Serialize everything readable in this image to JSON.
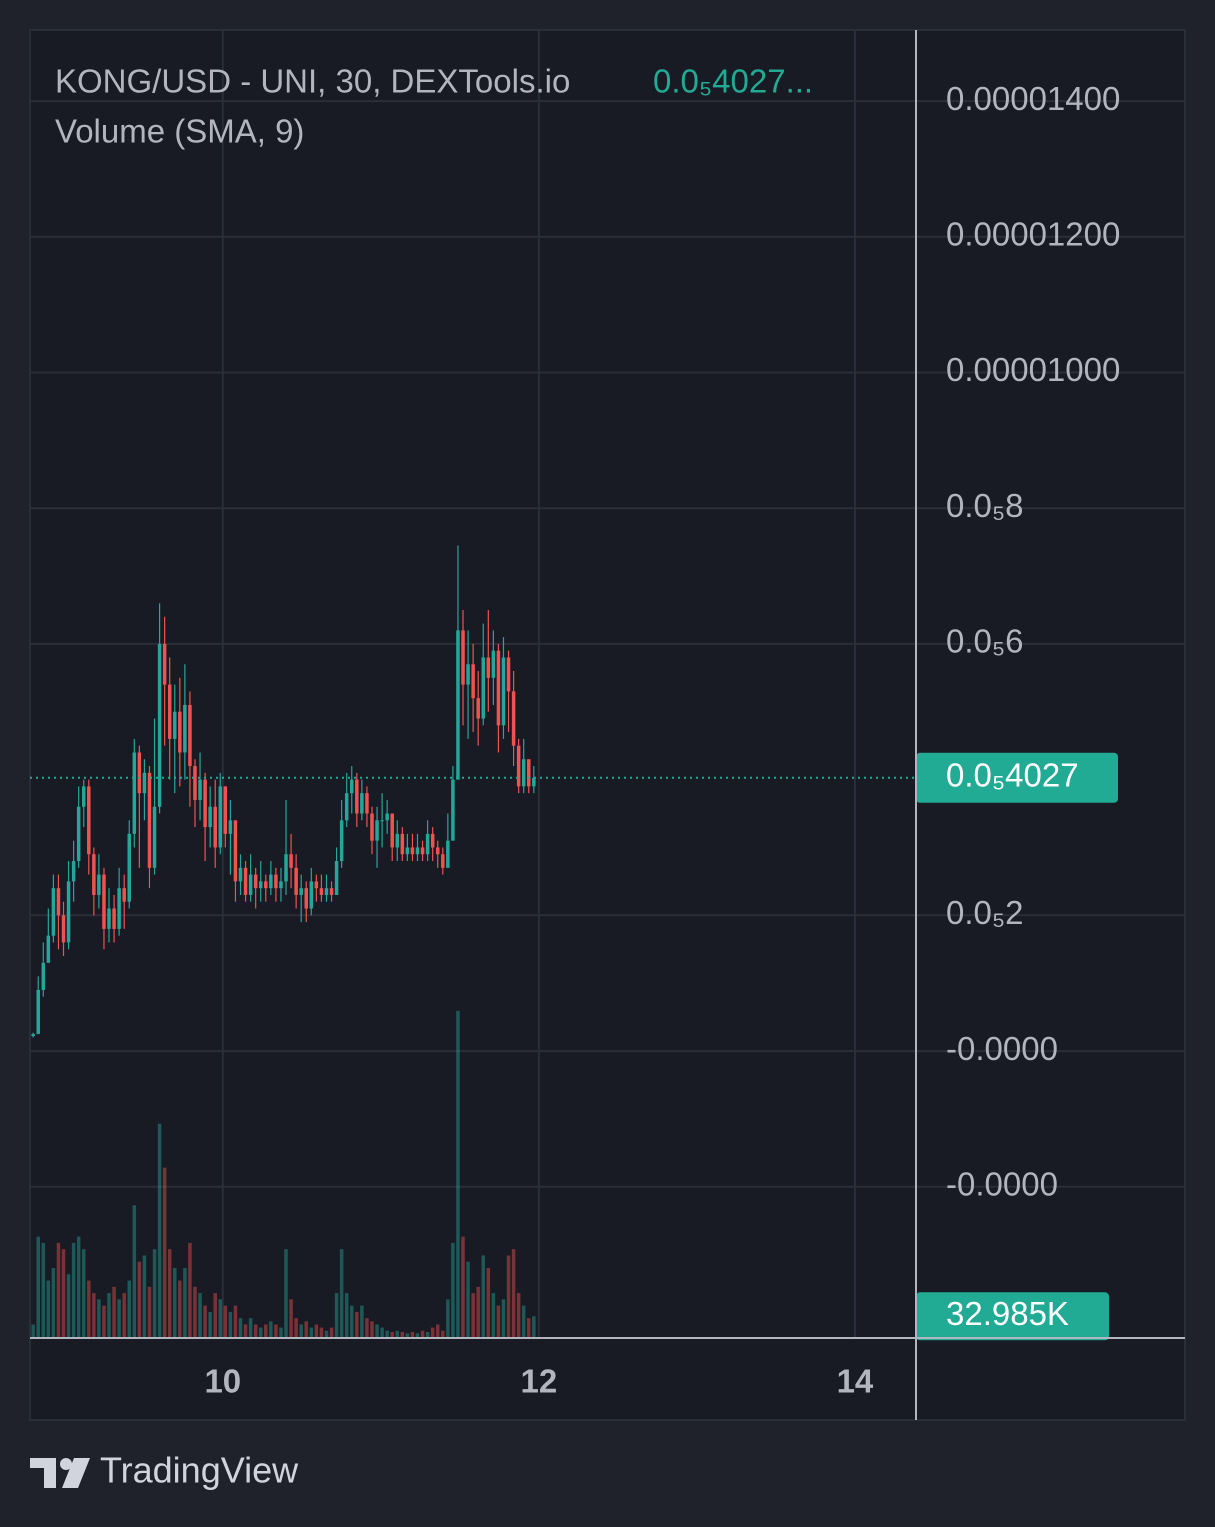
{
  "chart_data": {
    "type": "candlestick",
    "title": "KONG/USD - UNI, 30, DEXTools.io",
    "title_value": "0.0₅4027...",
    "subtitle": "Volume (SMA, 9)",
    "x": [
      8.8,
      8.832,
      8.864,
      8.896,
      8.928,
      8.96,
      8.992,
      9.024,
      9.056,
      9.088,
      9.12,
      9.152,
      9.184,
      9.216,
      9.248,
      9.28,
      9.312,
      9.344,
      9.376,
      9.408,
      9.44,
      9.472,
      9.504,
      9.536,
      9.568,
      9.6,
      9.632,
      9.664,
      9.696,
      9.728,
      9.76,
      9.792,
      9.824,
      9.856,
      9.888,
      9.92,
      9.952,
      9.984,
      10.016,
      10.048,
      10.08,
      10.112,
      10.144,
      10.176,
      10.208,
      10.24,
      10.272,
      10.304,
      10.336,
      10.368,
      10.4,
      10.432,
      10.464,
      10.496,
      10.528,
      10.56,
      10.592,
      10.624,
      10.656,
      10.688,
      10.72,
      10.752,
      10.784,
      10.816,
      10.848,
      10.88,
      10.912,
      10.944,
      10.976,
      11.008,
      11.04,
      11.072,
      11.104,
      11.136,
      11.168,
      11.2,
      11.232,
      11.264,
      11.296,
      11.328,
      11.36,
      11.392,
      11.424,
      11.456,
      11.488,
      11.52,
      11.552,
      11.584,
      11.616,
      11.648,
      11.68,
      11.712,
      11.744,
      11.776,
      11.808,
      11.84,
      11.872,
      11.904,
      11.936,
      11.968
    ],
    "open": [
      2.2e-07,
      2.5e-07,
      9e-07,
      1.3e-06,
      1.7e-06,
      2.4e-06,
      2e-06,
      1.6e-06,
      2.5e-06,
      2.8e-06,
      3.6e-06,
      3.9e-06,
      2.9e-06,
      2.3e-06,
      2.6e-06,
      1.8e-06,
      2.1e-06,
      1.8e-06,
      2.4e-06,
      2.2e-06,
      3.2e-06,
      4.4e-06,
      3.8e-06,
      4.1e-06,
      2.7e-06,
      3.6e-06,
      6e-06,
      5.4e-06,
      4.6e-06,
      5e-06,
      4.4e-06,
      5.1e-06,
      4.2e-06,
      3.7e-06,
      4e-06,
      3.3e-06,
      3.6e-06,
      3e-06,
      3.9e-06,
      3.2e-06,
      3.4e-06,
      2.5e-06,
      2.7e-06,
      2.3e-06,
      2.6e-06,
      2.4e-06,
      2.5e-06,
      2.4e-06,
      2.6e-06,
      2.4e-06,
      2.5e-06,
      2.9e-06,
      2.7e-06,
      2.3e-06,
      2.4e-06,
      2.1e-06,
      2.5e-06,
      2.4e-06,
      2.3e-06,
      2.4e-06,
      2.3e-06,
      2.8e-06,
      3.4e-06,
      3.8e-06,
      4e-06,
      3.5e-06,
      3.8e-06,
      3.5e-06,
      3.1e-06,
      3.4e-06,
      3.4e-06,
      3.5e-06,
      3e-06,
      3.2e-06,
      2.9e-06,
      3e-06,
      2.9e-06,
      3e-06,
      2.9e-06,
      3.2e-06,
      3e-06,
      2.9e-06,
      2.7e-06,
      3.1e-06,
      4e-06,
      6.2e-06,
      5.4e-06,
      5.7e-06,
      5.2e-06,
      4.9e-06,
      5.8e-06,
      5.5e-06,
      5.9e-06,
      4.8e-06,
      5.8e-06,
      5.3e-06,
      4.5e-06,
      3.9e-06,
      4.3e-06,
      3.9e-06
    ],
    "high": [
      2.7e-07,
      1.1e-06,
      1.6e-06,
      2.1e-06,
      2.6e-06,
      2.6e-06,
      2.2e-06,
      2.8e-06,
      3.1e-06,
      3.9e-06,
      4e-06,
      4e-06,
      3e-06,
      2.9e-06,
      2.7e-06,
      2.4e-06,
      2.3e-06,
      2.7e-06,
      2.6e-06,
      3.4e-06,
      4.6e-06,
      4.5e-06,
      4.3e-06,
      4.2e-06,
      4.9e-06,
      6.6e-06,
      6.4e-06,
      5.8e-06,
      5.4e-06,
      5.5e-06,
      5.7e-06,
      5.3e-06,
      4.3e-06,
      4.4e-06,
      4.1e-06,
      3.9e-06,
      4e-06,
      4.1e-06,
      3.9e-06,
      3.7e-06,
      3.4e-06,
      2.9e-06,
      2.8e-06,
      2.9e-06,
      2.7e-06,
      2.8e-06,
      2.6e-06,
      2.8e-06,
      2.7e-06,
      2.7e-06,
      3.7e-06,
      3.2e-06,
      2.9e-06,
      2.6e-06,
      2.5e-06,
      2.7e-06,
      2.6e-06,
      2.6e-06,
      2.6e-06,
      2.5e-06,
      3e-06,
      3.7e-06,
      4.1e-06,
      4.2e-06,
      4.1e-06,
      4e-06,
      3.9e-06,
      3.6e-06,
      3.6e-06,
      3.8e-06,
      3.7e-06,
      3.5e-06,
      3.4e-06,
      3.3e-06,
      3.2e-06,
      3.2e-06,
      3.2e-06,
      3.1e-06,
      3.4e-06,
      3.3e-06,
      3.1e-06,
      3e-06,
      3.5e-06,
      4.2e-06,
      7.45e-06,
      6.5e-06,
      6.2e-06,
      6e-06,
      5.6e-06,
      6.3e-06,
      6.5e-06,
      6.2e-06,
      6e-06,
      6.1e-06,
      5.9e-06,
      5.6e-06,
      4.6e-06,
      4.6e-06,
      4.3e-06,
      4.2e-06
    ],
    "low": [
      2e-07,
      2.5e-07,
      8e-07,
      1.3e-06,
      1.6e-06,
      1.5e-06,
      1.4e-06,
      1.5e-06,
      2.2e-06,
      2.7e-06,
      3.3e-06,
      2.6e-06,
      2e-06,
      2.1e-06,
      1.5e-06,
      1.6e-06,
      1.6e-06,
      1.7e-06,
      1.8e-06,
      2.1e-06,
      3e-06,
      2.7e-06,
      3.4e-06,
      2.4e-06,
      2.6e-06,
      3.5e-06,
      4.5e-06,
      4e-06,
      3.8e-06,
      3.9e-06,
      4e-06,
      3.6e-06,
      3.3e-06,
      3.4e-06,
      2.8e-06,
      3e-06,
      2.7e-06,
      2.9e-06,
      3e-06,
      2.6e-06,
      2.2e-06,
      2.3e-06,
      2.2e-06,
      2.2e-06,
      2.1e-06,
      2.2e-06,
      2.2e-06,
      2.3e-06,
      2.2e-06,
      2.2e-06,
      2.3e-06,
      2.4e-06,
      2.1e-06,
      1.9e-06,
      1.9e-06,
      2e-06,
      2.2e-06,
      2.2e-06,
      2.2e-06,
      2.2e-06,
      2.3e-06,
      2.7e-06,
      3.3e-06,
      3.5e-06,
      3.3e-06,
      3.4e-06,
      3.3e-06,
      2.9e-06,
      2.7e-06,
      3e-06,
      3.2e-06,
      2.8e-06,
      2.8e-06,
      2.8e-06,
      2.8e-06,
      2.8e-06,
      2.8e-06,
      2.8e-06,
      2.8e-06,
      2.8e-06,
      2.7e-06,
      2.6e-06,
      2.7e-06,
      3.1e-06,
      4e-06,
      4.8e-06,
      4.6e-06,
      4.7e-06,
      4.5e-06,
      4.8e-06,
      5e-06,
      5.1e-06,
      4.4e-06,
      4.6e-06,
      4.7e-06,
      4.2e-06,
      3.8e-06,
      3.8e-06,
      3.8e-06,
      3.8e-06
    ],
    "close": [
      2.5e-07,
      9e-07,
      1.3e-06,
      1.7e-06,
      2.4e-06,
      2e-06,
      1.6e-06,
      2.5e-06,
      2.8e-06,
      3.6e-06,
      3.9e-06,
      2.9e-06,
      2.3e-06,
      2.6e-06,
      1.8e-06,
      2.1e-06,
      1.8e-06,
      2.4e-06,
      2.2e-06,
      3.2e-06,
      4.4e-06,
      3.8e-06,
      4.1e-06,
      2.7e-06,
      3.6e-06,
      6e-06,
      5.4e-06,
      4.6e-06,
      5e-06,
      4.4e-06,
      5.1e-06,
      4.2e-06,
      3.7e-06,
      4e-06,
      3.3e-06,
      3.6e-06,
      3e-06,
      3.9e-06,
      3.2e-06,
      3.4e-06,
      2.5e-06,
      2.7e-06,
      2.3e-06,
      2.6e-06,
      2.4e-06,
      2.5e-06,
      2.4e-06,
      2.6e-06,
      2.4e-06,
      2.5e-06,
      2.9e-06,
      2.7e-06,
      2.3e-06,
      2.4e-06,
      2.1e-06,
      2.5e-06,
      2.4e-06,
      2.3e-06,
      2.4e-06,
      2.3e-06,
      2.8e-06,
      3.4e-06,
      3.8e-06,
      4e-06,
      3.5e-06,
      3.8e-06,
      3.5e-06,
      3.1e-06,
      3.4e-06,
      3.4e-06,
      3.5e-06,
      3e-06,
      3.2e-06,
      2.9e-06,
      3e-06,
      2.9e-06,
      3e-06,
      2.9e-06,
      3.2e-06,
      3e-06,
      2.9e-06,
      2.7e-06,
      3.1e-06,
      4e-06,
      6.2e-06,
      5.4e-06,
      5.7e-06,
      5.2e-06,
      4.9e-06,
      5.8e-06,
      5.5e-06,
      5.9e-06,
      4.8e-06,
      5.8e-06,
      5.3e-06,
      4.5e-06,
      3.9e-06,
      4.3e-06,
      3.9e-06,
      4.027e-06
    ],
    "volume": [
      20000,
      160000,
      150000,
      90000,
      110000,
      150000,
      140000,
      100000,
      150000,
      160000,
      140000,
      90000,
      70000,
      60000,
      50000,
      70000,
      80000,
      60000,
      70000,
      90000,
      210000,
      120000,
      130000,
      80000,
      140000,
      340000,
      270000,
      140000,
      110000,
      90000,
      110000,
      150000,
      80000,
      70000,
      50000,
      40000,
      70000,
      60000,
      50000,
      40000,
      50000,
      30000,
      20000,
      30000,
      20000,
      15000,
      20000,
      25000,
      20000,
      15000,
      140000,
      60000,
      30000,
      20000,
      25000,
      15000,
      20000,
      15000,
      10000,
      15000,
      70000,
      140000,
      70000,
      50000,
      40000,
      50000,
      30000,
      25000,
      20000,
      15000,
      10000,
      8000,
      10000,
      8000,
      6000,
      8000,
      6000,
      10000,
      8000,
      15000,
      20000,
      10000,
      60000,
      150000,
      520000,
      160000,
      120000,
      70000,
      80000,
      130000,
      110000,
      70000,
      50000,
      60000,
      130000,
      140000,
      70000,
      50000,
      30000,
      32985
    ],
    "up_color": "#26a69a",
    "down_color": "#ef5350",
    "xlim": [
      8.78,
      14.38
    ],
    "xticks": [
      10,
      12,
      14
    ],
    "ylim": [
      -4.215e-06,
      1.5033e-05
    ],
    "yticks": [
      {
        "value": 1.4e-05,
        "label": "0.00001400"
      },
      {
        "value": 1.2e-05,
        "label": "0.00001200"
      },
      {
        "value": 1e-05,
        "label": "0.00001000"
      },
      {
        "value": 8e-06,
        "label": "0.0₅8"
      },
      {
        "value": 6e-06,
        "label": "0.0₅6"
      },
      {
        "value": 2e-06,
        "label": "0.0₅2"
      },
      {
        "value": -1e-09,
        "label": "-0.0000"
      },
      {
        "value": -2e-06,
        "label": "-0.0000"
      }
    ],
    "last_price": {
      "value": 4.027e-06,
      "label": "0.0₅4027"
    },
    "last_volume": {
      "value": 32985,
      "label": "32.985K"
    },
    "volume_ylim": [
      0,
      550000
    ],
    "grid": true
  },
  "branding": "TradingView"
}
